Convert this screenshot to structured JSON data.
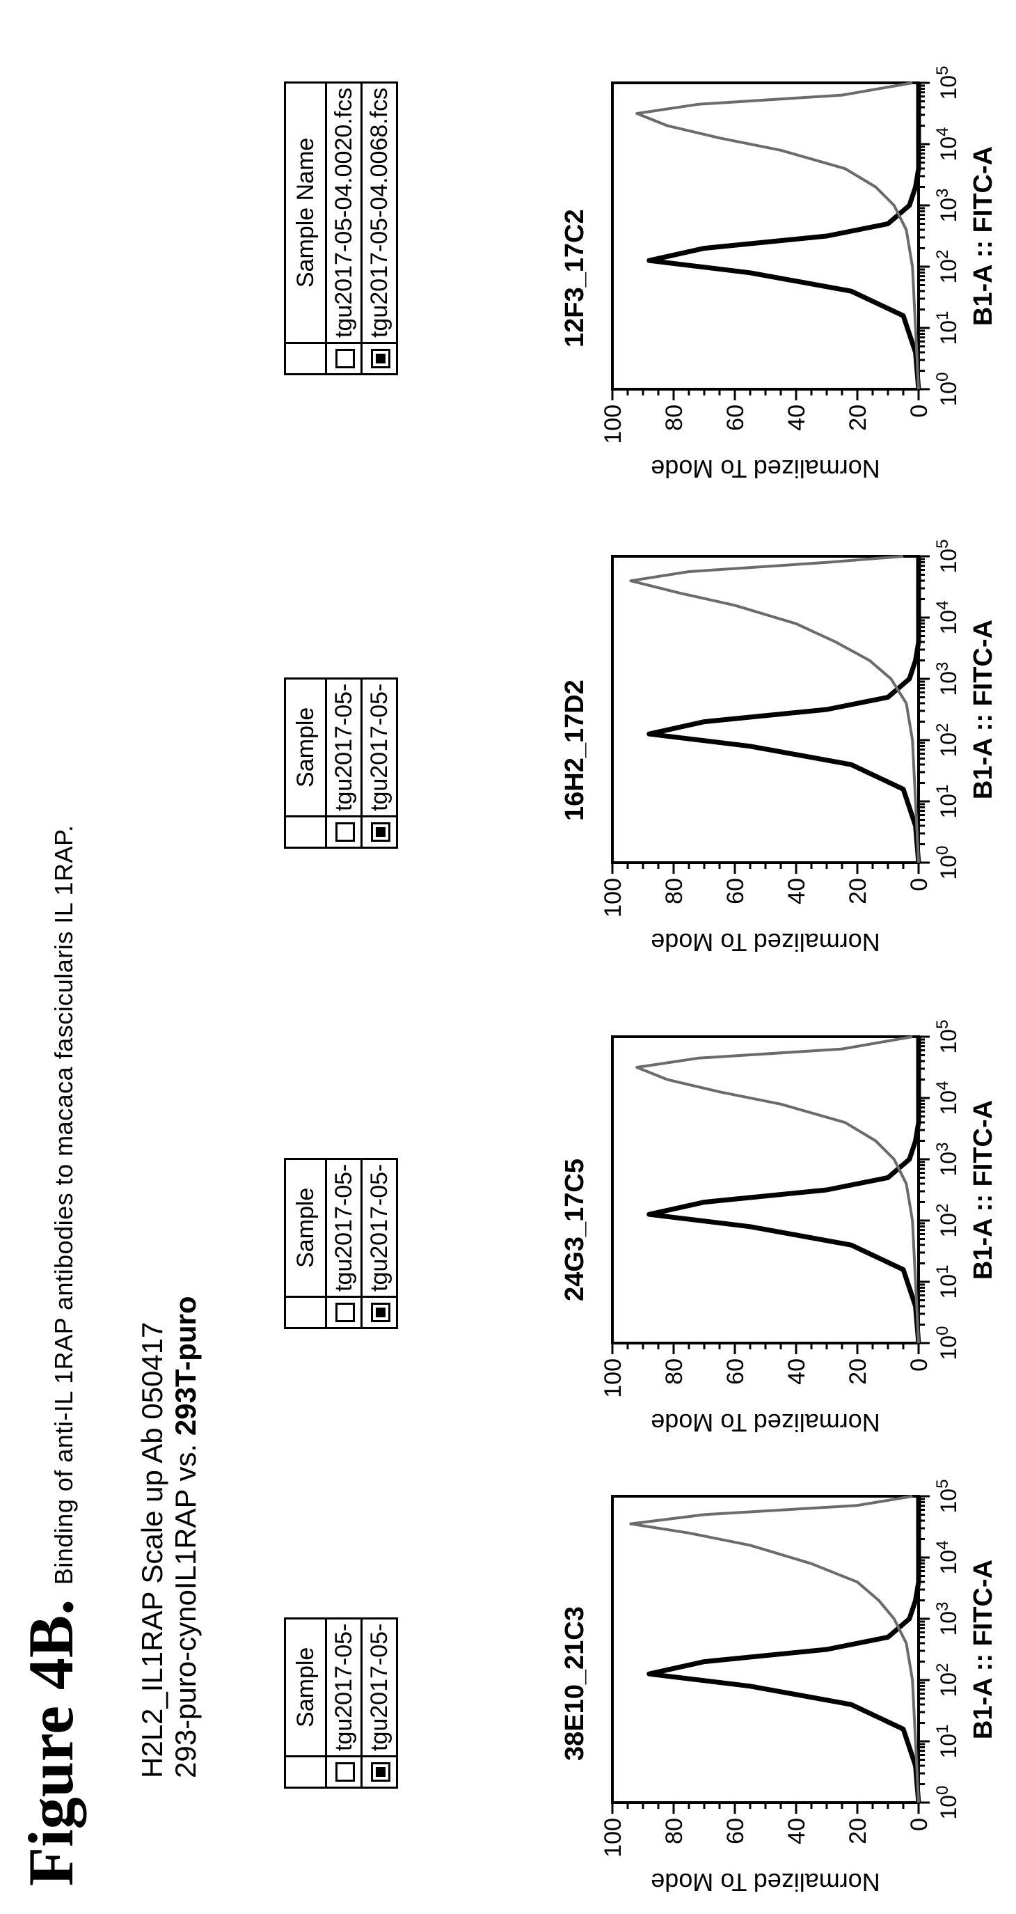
{
  "figure": {
    "number": "Figure 4B",
    "dot": ".",
    "caption": "Binding of anti-IL 1RAP antibodies to macaca fascicularis IL 1RAP."
  },
  "subtitle": {
    "line1": "H2L2_IL1RAP Scale up Ab 050417",
    "line2_prefix": "293-puro-cynoIL1RAP vs. ",
    "line2_bold": "293T-puro"
  },
  "colors": {
    "ink": "#000000",
    "trace_gray": "#6b6b6b",
    "background": "#ffffff"
  },
  "panels": [
    {
      "clone": "38E10_21C3",
      "legend": {
        "header": "Sample",
        "rows": [
          "tgu2017-05-",
          "tgu2017-05-"
        ]
      },
      "ylabel": "Normalized To Mode",
      "xlabel": "B1-A :: FITC-A",
      "yticks": [
        "100",
        "80",
        "60",
        "40",
        "20",
        "0"
      ],
      "xticks": [
        "0",
        "1",
        "2",
        "3",
        "4",
        "5"
      ]
    },
    {
      "clone": "24G3_17C5",
      "legend": {
        "header": "Sample",
        "rows": [
          "tgu2017-05-",
          "tgu2017-05-"
        ]
      },
      "ylabel": "Normalized To Mode",
      "xlabel": "B1-A :: FITC-A",
      "yticks": [
        "100",
        "80",
        "60",
        "40",
        "20",
        "0"
      ],
      "xticks": [
        "0",
        "1",
        "2",
        "3",
        "4",
        "5"
      ]
    },
    {
      "clone": "16H2_17D2",
      "legend": {
        "header": "Sample",
        "rows": [
          "tgu2017-05-",
          "tgu2017-05-"
        ]
      },
      "ylabel": "Normalized To Mode",
      "xlabel": "B1-A :: FITC-A",
      "yticks": [
        "100",
        "80",
        "60",
        "40",
        "20",
        "0"
      ],
      "xticks": [
        "0",
        "1",
        "2",
        "3",
        "4",
        "5"
      ]
    },
    {
      "clone": "12F3_17C2",
      "legend": {
        "header": "Sample Name",
        "rows": [
          "tgu2017-05-04.0020.fcs",
          "tgu2017-05-04.0068.fcs"
        ]
      },
      "ylabel": "Normalized To Mode",
      "xlabel": "B1-A :: FITC-A",
      "yticks": [
        "100",
        "80",
        "60",
        "40",
        "20",
        "0"
      ],
      "xticks": [
        "0",
        "1",
        "2",
        "3",
        "4",
        "5"
      ]
    }
  ],
  "chart_data": [
    {
      "type": "line",
      "title": "38E10_21C3",
      "xlabel": "B1-A :: FITC-A",
      "ylabel": "Normalized To Mode",
      "xscale": "log",
      "xlim": [
        0,
        5
      ],
      "ylim": [
        0,
        100
      ],
      "series": [
        {
          "x": [
            0.0,
            0.6,
            1.2,
            1.6,
            1.9,
            2.1,
            2.3,
            2.5,
            2.7,
            3.0,
            3.3,
            3.6,
            5.0
          ],
          "y": [
            0,
            1,
            5,
            22,
            55,
            88,
            70,
            30,
            10,
            3,
            1,
            0,
            0
          ]
        },
        {
          "x": [
            0.0,
            1.0,
            2.0,
            2.6,
            3.0,
            3.3,
            3.6,
            3.9,
            4.2,
            4.4,
            4.55,
            4.7,
            4.85,
            5.0
          ],
          "y": [
            0,
            1,
            2,
            4,
            8,
            13,
            20,
            35,
            55,
            75,
            94,
            70,
            20,
            2
          ]
        }
      ]
    },
    {
      "type": "line",
      "title": "24G3_17C5",
      "xlabel": "B1-A :: FITC-A",
      "ylabel": "Normalized To Mode",
      "xscale": "log",
      "xlim": [
        0,
        5
      ],
      "ylim": [
        0,
        100
      ],
      "series": [
        {
          "x": [
            0.0,
            0.6,
            1.2,
            1.6,
            1.9,
            2.1,
            2.3,
            2.5,
            2.7,
            3.0,
            3.3,
            3.6,
            5.0
          ],
          "y": [
            0,
            1,
            5,
            22,
            55,
            88,
            70,
            30,
            10,
            3,
            1,
            0,
            0
          ]
        },
        {
          "x": [
            0.0,
            1.0,
            2.0,
            2.6,
            3.0,
            3.3,
            3.6,
            3.9,
            4.1,
            4.3,
            4.5,
            4.65,
            4.8,
            5.0
          ],
          "y": [
            0,
            1,
            2,
            4,
            8,
            14,
            24,
            45,
            65,
            82,
            92,
            72,
            25,
            2
          ]
        }
      ]
    },
    {
      "type": "line",
      "title": "16H2_17D2",
      "xlabel": "B1-A :: FITC-A",
      "ylabel": "Normalized To Mode",
      "xscale": "log",
      "xlim": [
        0,
        5
      ],
      "ylim": [
        0,
        100
      ],
      "series": [
        {
          "x": [
            0.0,
            0.6,
            1.2,
            1.6,
            1.9,
            2.1,
            2.3,
            2.5,
            2.7,
            3.0,
            3.3,
            3.6,
            5.0
          ],
          "y": [
            0,
            1,
            5,
            22,
            55,
            88,
            70,
            30,
            10,
            3,
            1,
            0,
            0
          ]
        },
        {
          "x": [
            0.0,
            1.0,
            2.0,
            2.6,
            3.0,
            3.3,
            3.6,
            3.9,
            4.2,
            4.4,
            4.6,
            4.75,
            4.9,
            5.0
          ],
          "y": [
            0,
            1,
            2,
            4,
            9,
            16,
            27,
            40,
            60,
            78,
            94,
            75,
            30,
            5
          ]
        }
      ]
    },
    {
      "type": "line",
      "title": "12F3_17C2",
      "xlabel": "B1-A :: FITC-A",
      "ylabel": "Normalized To Mode",
      "xscale": "log",
      "xlim": [
        0,
        5
      ],
      "ylim": [
        0,
        100
      ],
      "series": [
        {
          "name": "tgu2017-05-04.0020.fcs",
          "x": [
            0.0,
            0.6,
            1.2,
            1.6,
            1.9,
            2.1,
            2.3,
            2.5,
            2.7,
            3.0,
            3.3,
            3.6,
            5.0
          ],
          "y": [
            0,
            1,
            5,
            22,
            55,
            88,
            70,
            30,
            10,
            3,
            1,
            0,
            0
          ]
        },
        {
          "name": "tgu2017-05-04.0068.fcs",
          "x": [
            0.0,
            1.0,
            2.0,
            2.6,
            3.0,
            3.3,
            3.6,
            3.9,
            4.1,
            4.3,
            4.5,
            4.65,
            4.8,
            5.0
          ],
          "y": [
            0,
            1,
            2,
            4,
            8,
            14,
            24,
            45,
            65,
            82,
            92,
            72,
            25,
            2
          ]
        }
      ]
    }
  ]
}
